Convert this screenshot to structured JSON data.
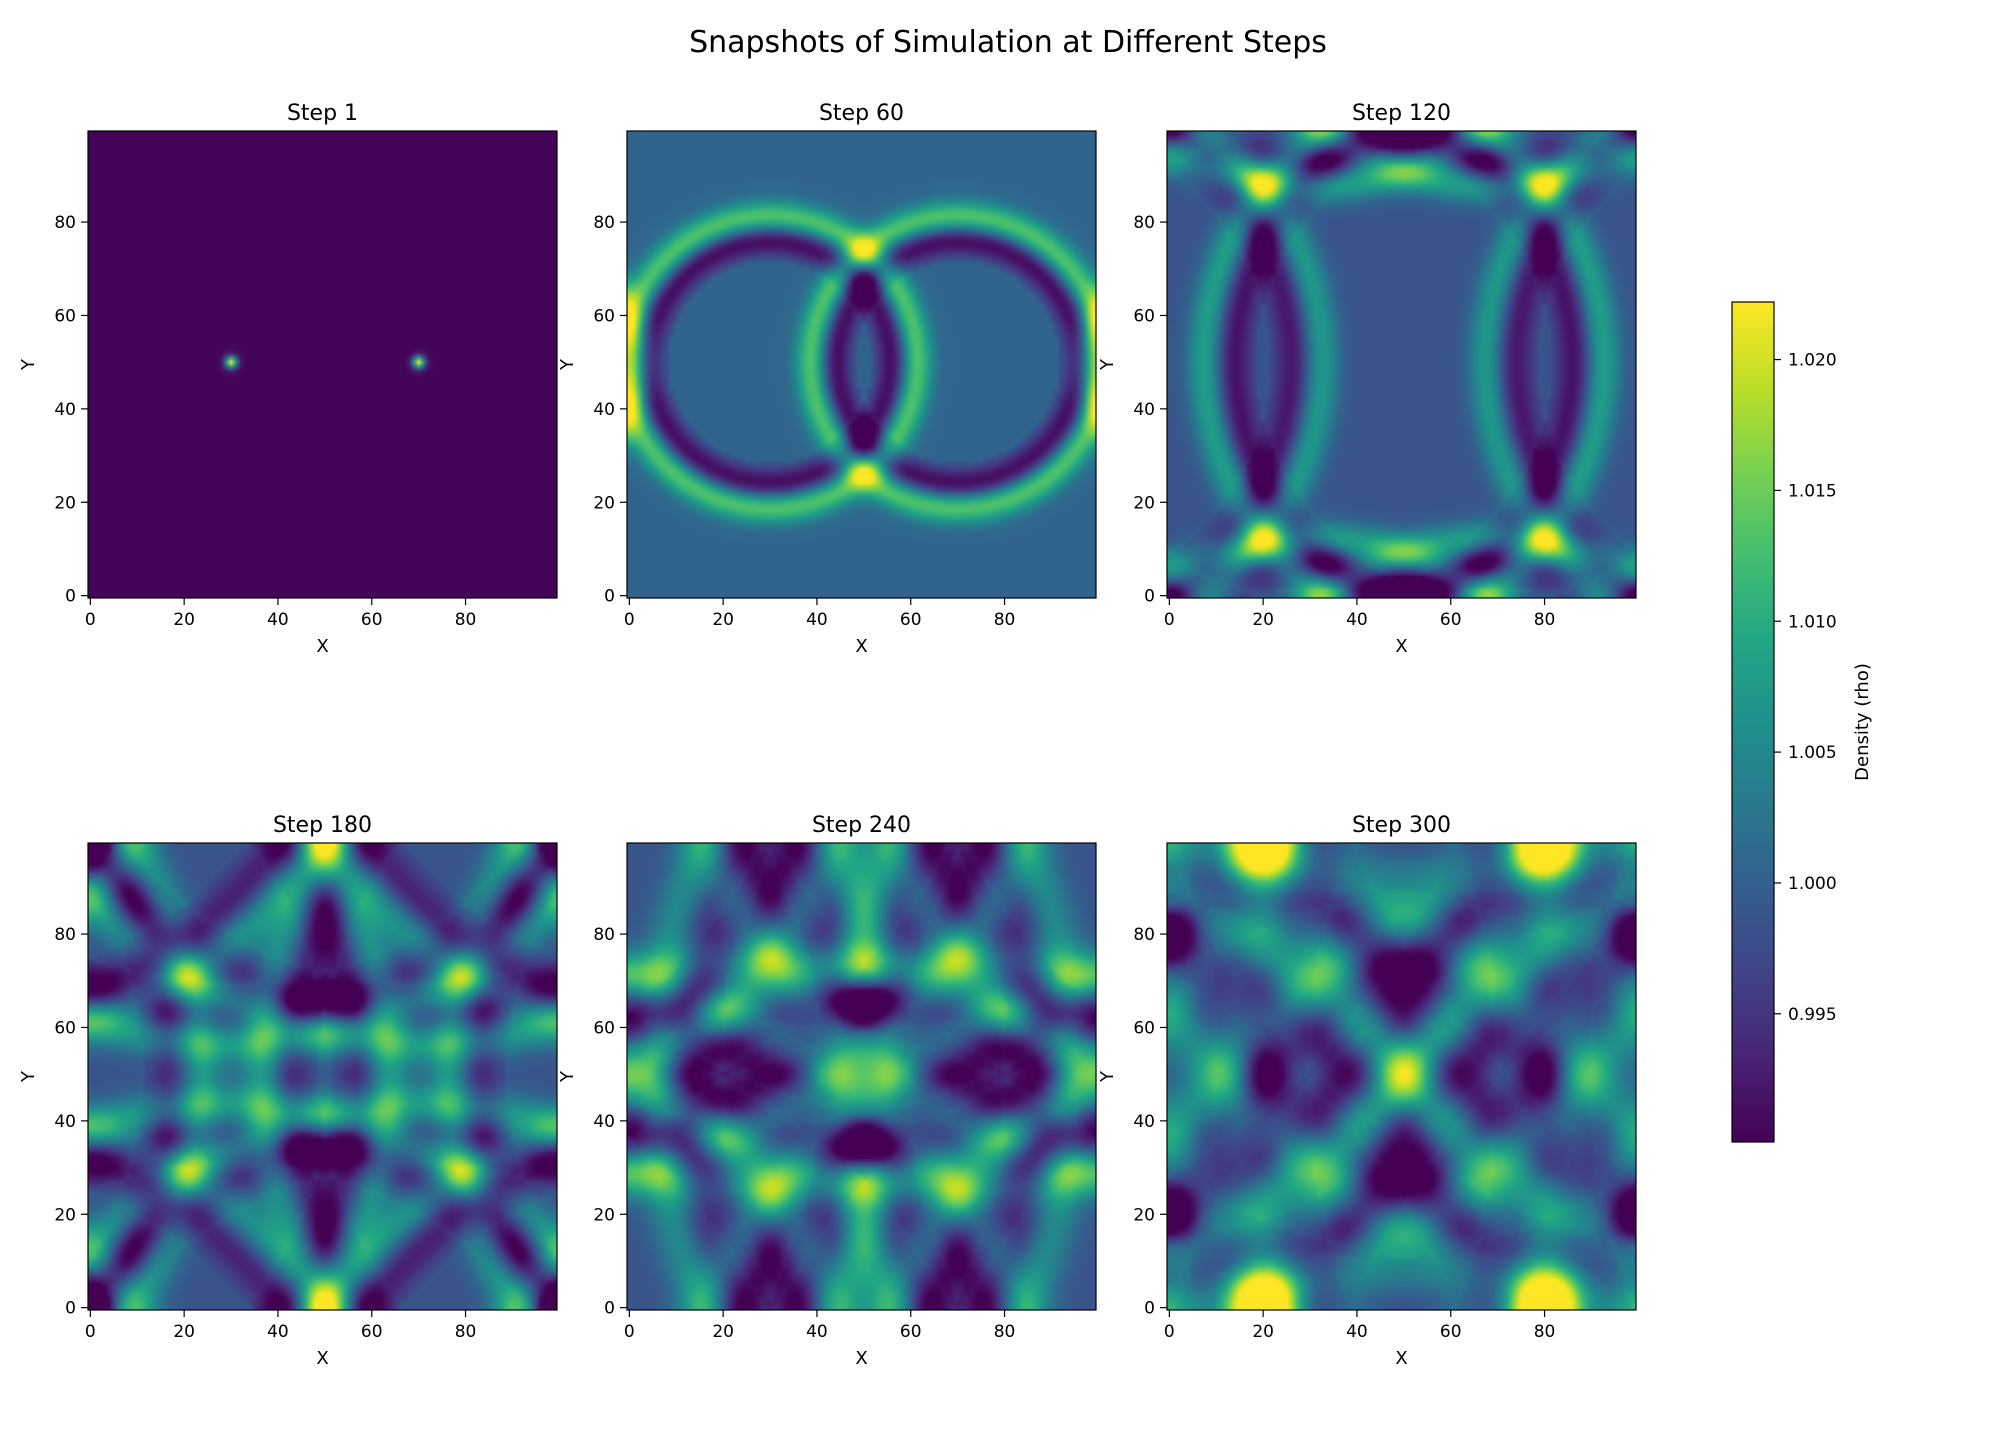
{
  "title": "Snapshots of Simulation at Different Steps",
  "colorbar": {
    "label": "Density (rho)",
    "range": [
      0.9901,
      1.0222
    ],
    "ticks": [
      0.995,
      1.0,
      1.005,
      1.01,
      1.015,
      1.02
    ],
    "tick_labels": [
      "0.995",
      "1.000",
      "1.005",
      "1.010",
      "1.015",
      "1.020"
    ],
    "colormap": "viridis"
  },
  "chart_data": {
    "type": "heatmap",
    "grid_size": [
      100,
      100
    ],
    "xlabel": "X",
    "ylabel": "Y",
    "xlim": [
      0,
      99
    ],
    "ylim": [
      0,
      99
    ],
    "x_ticks": [
      0,
      20,
      40,
      60,
      80
    ],
    "y_ticks": [
      0,
      20,
      40,
      60,
      80
    ],
    "vmin": 0.9901,
    "vmax": 1.0222,
    "panels": [
      {
        "title": "Step 1",
        "step": 1,
        "sources": [
          [
            30,
            50
          ],
          [
            70,
            50
          ]
        ]
      },
      {
        "title": "Step 60",
        "step": 60,
        "sources": [
          [
            30,
            50
          ],
          [
            70,
            50
          ]
        ]
      },
      {
        "title": "Step 120",
        "step": 120,
        "sources": [
          [
            30,
            50
          ],
          [
            70,
            50
          ]
        ]
      },
      {
        "title": "Step 180",
        "step": 180,
        "sources": [
          [
            30,
            50
          ],
          [
            70,
            50
          ]
        ]
      },
      {
        "title": "Step 240",
        "step": 240,
        "sources": [
          [
            30,
            50
          ],
          [
            70,
            50
          ]
        ]
      },
      {
        "title": "Step 300",
        "step": 300,
        "sources": [
          [
            30,
            50
          ],
          [
            70,
            50
          ]
        ]
      }
    ]
  }
}
